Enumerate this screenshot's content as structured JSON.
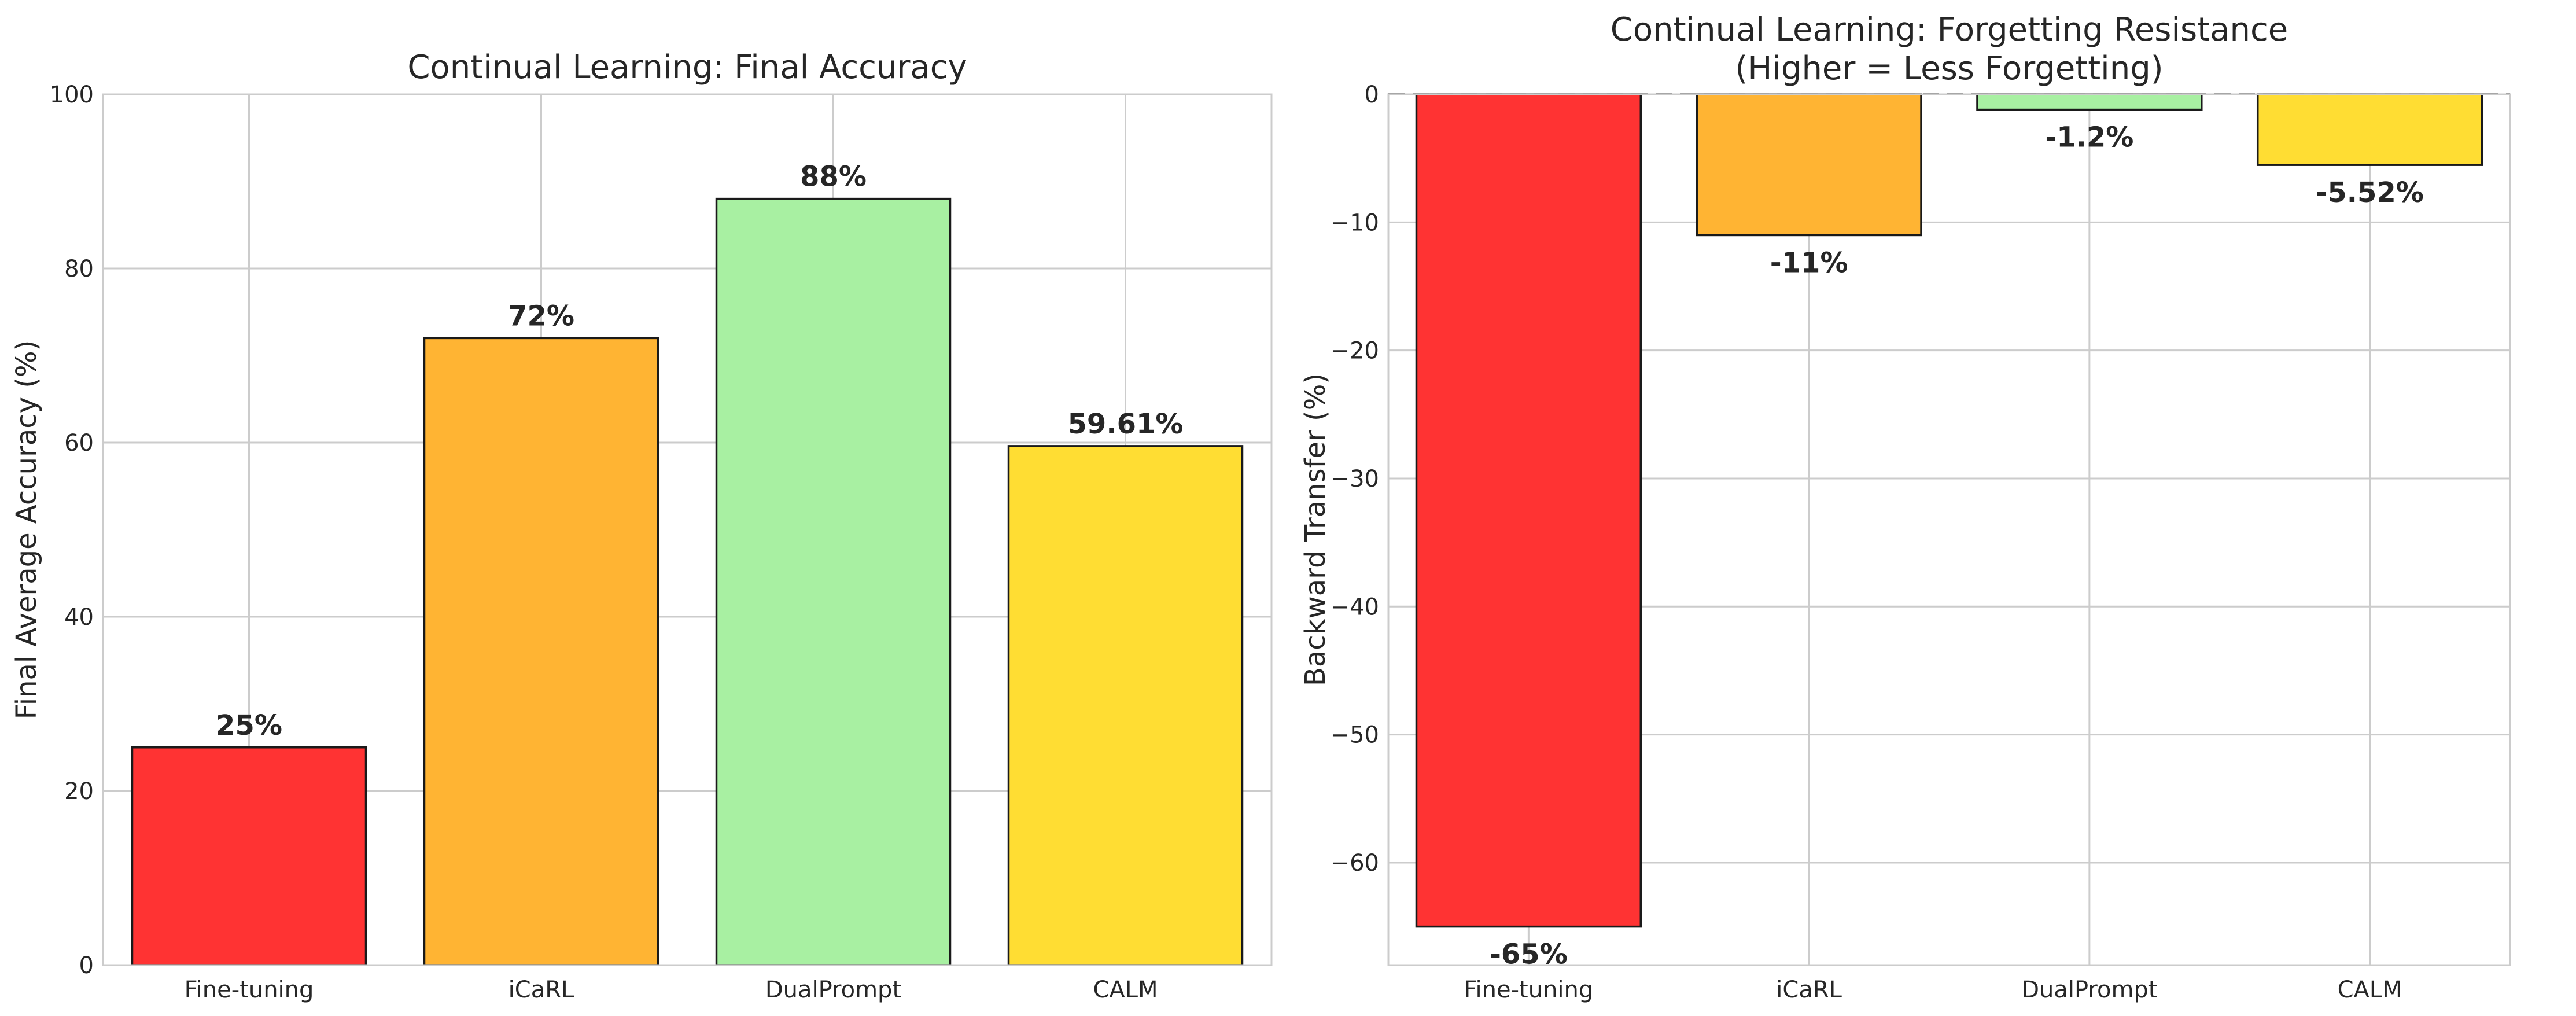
{
  "chart_data": [
    {
      "type": "bar",
      "title": "Continual Learning: Final Accuracy",
      "xlabel": "",
      "ylabel": "Final Average Accuracy (%)",
      "categories": [
        "Fine-tuning",
        "iCaRL",
        "DualPrompt",
        "CALM"
      ],
      "values": [
        25,
        72,
        88,
        59.61
      ],
      "data_labels": [
        "25%",
        "72%",
        "88%",
        "59.61%"
      ],
      "colors": [
        "#ff3333",
        "#ffb433",
        "#a8f0a2",
        "#ffdd33"
      ],
      "ylim": [
        0,
        100
      ],
      "yticks": [
        0,
        20,
        40,
        60,
        80,
        100
      ],
      "ytick_labels": [
        "0",
        "20",
        "40",
        "60",
        "80",
        "100"
      ],
      "grid": true
    },
    {
      "type": "bar",
      "title": "Continual Learning: Forgetting Resistance",
      "subtitle": "(Higher = Less Forgetting)",
      "xlabel": "",
      "ylabel": "Backward Transfer (%)",
      "categories": [
        "Fine-tuning",
        "iCaRL",
        "DualPrompt",
        "CALM"
      ],
      "values": [
        -65,
        -11,
        -1.2,
        -5.52
      ],
      "data_labels": [
        "-65%",
        "-11%",
        "-1.2%",
        "-5.52%"
      ],
      "colors": [
        "#ff3333",
        "#ffb433",
        "#a8f0a2",
        "#ffdd33"
      ],
      "ylim": [
        -68,
        0
      ],
      "yticks": [
        0,
        -10,
        -20,
        -30,
        -40,
        -50,
        -60
      ],
      "ytick_labels": [
        "0",
        "−10",
        "−20",
        "−30",
        "−40",
        "−50",
        "−60"
      ],
      "reference_line": 0,
      "grid": true
    }
  ]
}
